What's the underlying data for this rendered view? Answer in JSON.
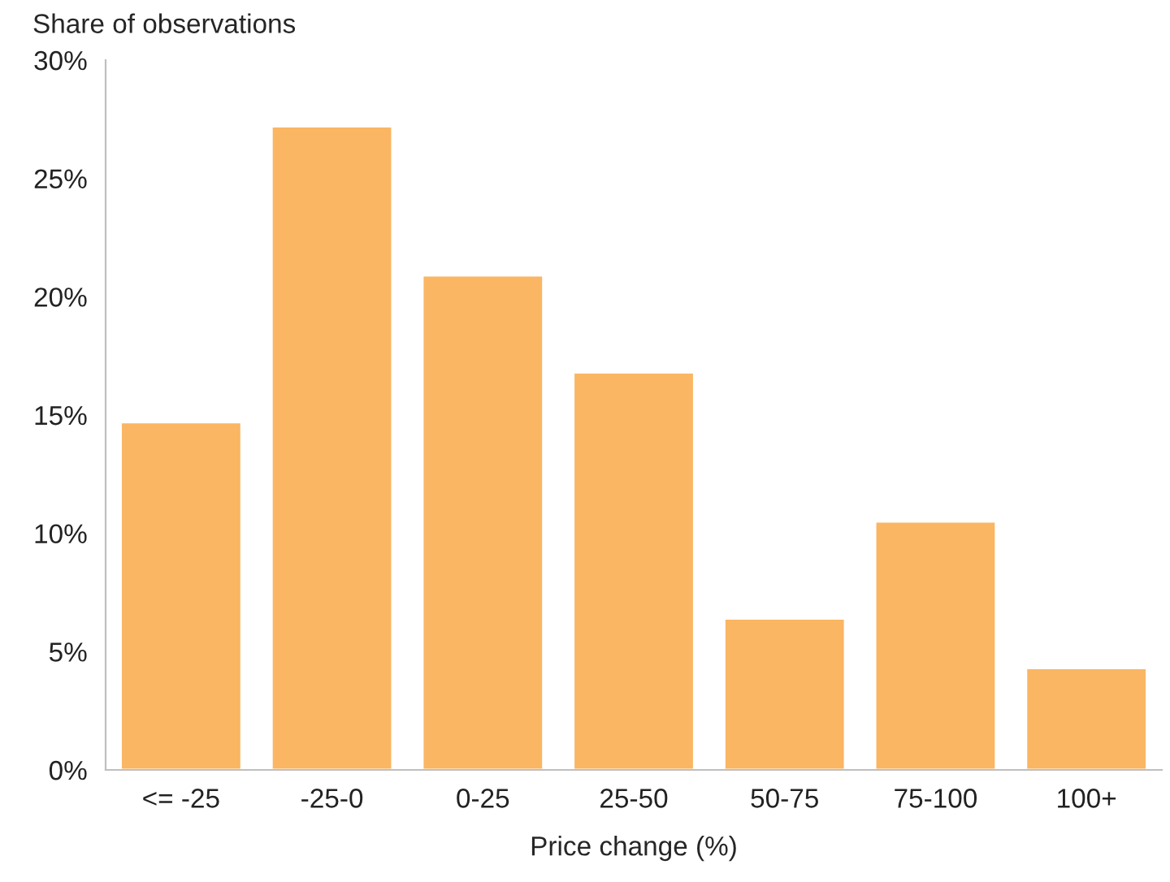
{
  "chart_data": {
    "type": "bar",
    "ylabel": "Share of observations",
    "xlabel": "Price change (%)",
    "categories": [
      "<= -25",
      "-25-0",
      "0-25",
      "25-50",
      "50-75",
      "75-100",
      "100+"
    ],
    "values": [
      14.7,
      27.2,
      20.9,
      16.8,
      6.4,
      10.5,
      4.3
    ],
    "color": "#fab663",
    "ylim": [
      0,
      30
    ],
    "yticks": [
      {
        "value": 0,
        "label": "0%"
      },
      {
        "value": 5,
        "label": "5%"
      },
      {
        "value": 10,
        "label": "10%"
      },
      {
        "value": 15,
        "label": "15%"
      },
      {
        "value": 20,
        "label": "20%"
      },
      {
        "value": 25,
        "label": "25%"
      },
      {
        "value": 30,
        "label": "30%"
      }
    ],
    "grid": false,
    "legend": false
  }
}
